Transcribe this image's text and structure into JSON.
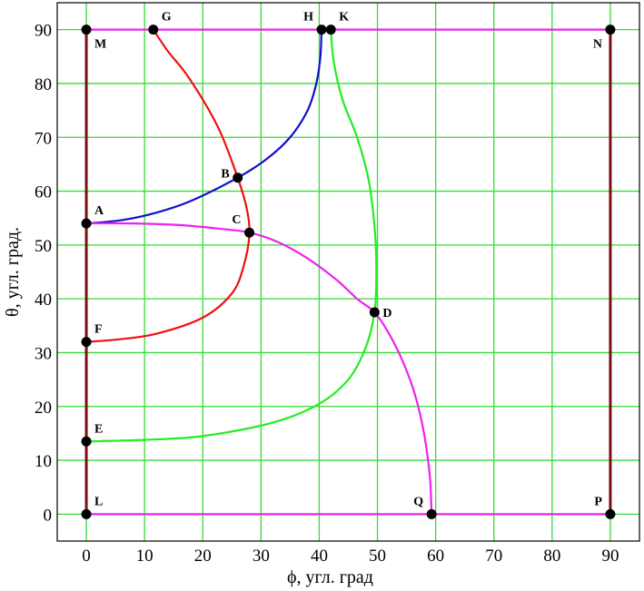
{
  "chart_data": {
    "type": "line",
    "xlabel": "ϕ, угл. град",
    "ylabel": "θ, угл. град.",
    "xlim": [
      -5,
      95
    ],
    "ylim": [
      -5,
      95
    ],
    "xticks": [
      0,
      10,
      20,
      30,
      40,
      50,
      60,
      70,
      80,
      90
    ],
    "yticks": [
      0,
      10,
      20,
      30,
      40,
      50,
      60,
      70,
      80,
      90
    ],
    "grid": true,
    "colors": {
      "grid": "#33dd33",
      "brown": "#7a1010",
      "magenta": "#ee22ee",
      "red": "#ee1111",
      "blue": "#1010cc",
      "green": "#22ee22",
      "point": "#000000"
    },
    "series": [
      {
        "color": "brown",
        "points": [
          [
            0,
            0
          ],
          [
            0,
            90
          ]
        ]
      },
      {
        "color": "brown",
        "points": [
          [
            90,
            0
          ],
          [
            90,
            90
          ]
        ]
      },
      {
        "color": "magenta",
        "points": [
          [
            0,
            90
          ],
          [
            90,
            90
          ]
        ]
      },
      {
        "color": "magenta",
        "points": [
          [
            0,
            0
          ],
          [
            90,
            0
          ]
        ]
      },
      {
        "color": "red",
        "points": [
          [
            11.5,
            90
          ],
          [
            14,
            86
          ],
          [
            17,
            82
          ],
          [
            20,
            77
          ],
          [
            23,
            71
          ],
          [
            26,
            62.5
          ],
          [
            27.5,
            57
          ],
          [
            28,
            52
          ],
          [
            27,
            46
          ],
          [
            25,
            41
          ],
          [
            20,
            36.5
          ],
          [
            12,
            33.5
          ],
          [
            5,
            32.4
          ],
          [
            0,
            32
          ]
        ]
      },
      {
        "color": "blue",
        "points": [
          [
            0,
            54
          ],
          [
            6,
            54.6
          ],
          [
            12,
            56
          ],
          [
            18,
            58.2
          ],
          [
            26,
            62.5
          ],
          [
            31,
            66
          ],
          [
            35,
            70
          ],
          [
            38,
            75
          ],
          [
            39.5,
            80
          ],
          [
            40.2,
            85
          ],
          [
            40.4,
            90
          ]
        ]
      },
      {
        "color": "green",
        "points": [
          [
            42,
            90
          ],
          [
            42.5,
            84
          ],
          [
            44,
            77
          ],
          [
            46.5,
            70
          ],
          [
            48.5,
            62
          ],
          [
            49.6,
            52
          ],
          [
            49.8,
            44
          ],
          [
            49.5,
            37.5
          ],
          [
            48,
            31
          ],
          [
            45,
            25
          ],
          [
            40,
            20.5
          ],
          [
            32,
            17
          ],
          [
            20,
            14.5
          ],
          [
            10,
            13.8
          ],
          [
            0,
            13.5
          ]
        ]
      },
      {
        "color": "magenta",
        "points": [
          [
            0,
            54
          ],
          [
            8,
            54
          ],
          [
            16,
            53.7
          ],
          [
            23,
            53
          ],
          [
            28,
            52.3
          ],
          [
            33,
            50.5
          ],
          [
            38,
            47.5
          ],
          [
            43,
            43.5
          ],
          [
            46.5,
            40
          ],
          [
            49.5,
            37.5
          ],
          [
            52,
            33.5
          ],
          [
            54.5,
            28
          ],
          [
            56.5,
            22
          ],
          [
            58,
            15
          ],
          [
            59,
            7
          ],
          [
            59.3,
            0
          ]
        ]
      }
    ],
    "points": [
      {
        "label": "M",
        "x": 0,
        "y": 90,
        "pos": "se"
      },
      {
        "label": "G",
        "x": 11.5,
        "y": 90,
        "pos": "ne"
      },
      {
        "label": "H",
        "x": 40.4,
        "y": 90,
        "pos": "nw"
      },
      {
        "label": "K",
        "x": 42,
        "y": 90,
        "pos": "ne"
      },
      {
        "label": "N",
        "x": 90,
        "y": 90,
        "pos": "sw"
      },
      {
        "label": "B",
        "x": 26,
        "y": 62.5,
        "pos": "w"
      },
      {
        "label": "A",
        "x": 0,
        "y": 54,
        "pos": "ne"
      },
      {
        "label": "C",
        "x": 28,
        "y": 52.3,
        "pos": "nw"
      },
      {
        "label": "D",
        "x": 49.5,
        "y": 37.5,
        "pos": "e"
      },
      {
        "label": "F",
        "x": 0,
        "y": 32,
        "pos": "ne"
      },
      {
        "label": "E",
        "x": 0,
        "y": 13.5,
        "pos": "ne"
      },
      {
        "label": "L",
        "x": 0,
        "y": 0,
        "pos": "ne"
      },
      {
        "label": "Q",
        "x": 59.3,
        "y": 0,
        "pos": "nw"
      },
      {
        "label": "P",
        "x": 90,
        "y": 0,
        "pos": "nw"
      }
    ]
  }
}
